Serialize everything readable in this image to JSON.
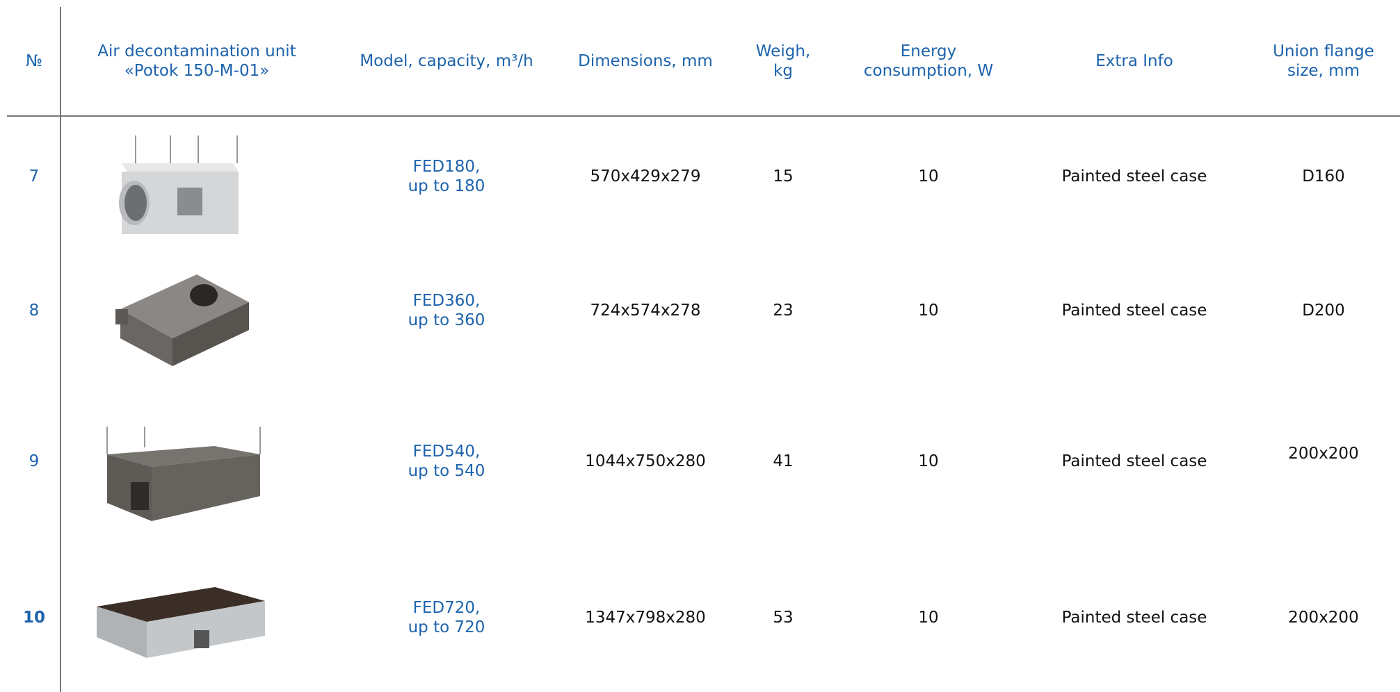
{
  "header": {
    "columns": [
      [
        "№"
      ],
      [
        "Air decontamination unit",
        "«Potok 150-M-01»"
      ],
      [
        "Model, capacity, m³/h"
      ],
      [
        "Dimensions, mm"
      ],
      [
        "Weigh,",
        "kg"
      ],
      [
        "Energy",
        "consumption, W"
      ],
      [
        "Extra Info"
      ],
      [
        "Union flange",
        "size, mm"
      ]
    ]
  },
  "table": {
    "rows": [
      {
        "number": "7",
        "model": [
          "FED180,",
          "up to 180"
        ],
        "dimensions": "570x429x279",
        "weight": "15",
        "energy": "10",
        "extra": "Painted steel case",
        "flange": "D160"
      },
      {
        "number": "8",
        "model": [
          "FED360,",
          "up to 360"
        ],
        "dimensions": "724x574x278",
        "weight": "23",
        "energy": "10",
        "extra": "Painted steel case",
        "flange": "D200"
      },
      {
        "number": "9",
        "model": [
          "FED540,",
          "up to 540"
        ],
        "dimensions": "1044x750x280",
        "weight": "41",
        "energy": "10",
        "extra": "Painted steel case",
        "flange": "200x200"
      },
      {
        "number": "10",
        "model": [
          "FED720,",
          "up to 720"
        ],
        "dimensions": "1347x798x280",
        "weight": "53",
        "energy": "10",
        "extra": "Painted steel case",
        "flange": "200x200"
      }
    ]
  }
}
